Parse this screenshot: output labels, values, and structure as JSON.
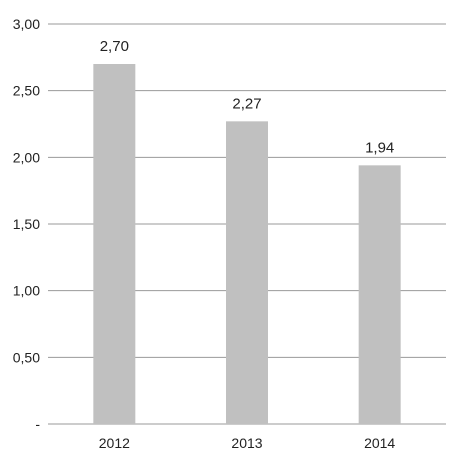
{
  "chart_data": {
    "type": "bar",
    "title": "",
    "xlabel": "",
    "ylabel": "",
    "categories": [
      "2012",
      "2013",
      "2014"
    ],
    "values": [
      2.7,
      2.27,
      1.94
    ],
    "data_labels": [
      "2,70",
      "2,27",
      "1,94"
    ],
    "ylim": [
      0,
      3.0
    ],
    "yticks": [
      {
        "value": 0,
        "label": "-"
      },
      {
        "value": 0.5,
        "label": "0,50"
      },
      {
        "value": 1.0,
        "label": "1,00"
      },
      {
        "value": 1.5,
        "label": "1,50"
      },
      {
        "value": 2.0,
        "label": "2,00"
      },
      {
        "value": 2.5,
        "label": "2,50"
      },
      {
        "value": 3.0,
        "label": "3,00"
      }
    ],
    "grid": true,
    "legend": "none",
    "bar_color": "#c0c0c0",
    "grid_color": "#9a9a9a"
  }
}
